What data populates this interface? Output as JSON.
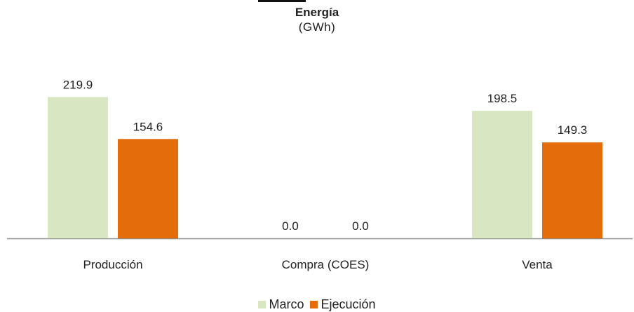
{
  "chart_data": {
    "type": "bar",
    "title": "Energía",
    "subtitle": "(GWh)",
    "categories": [
      "Producción",
      "Compra (COES)",
      "Venta"
    ],
    "series": [
      {
        "name": "Marco",
        "color": "#d9e6c2",
        "values": [
          219.9,
          0.0,
          198.5
        ],
        "labels": [
          "219.9",
          "0.0",
          "198.5"
        ]
      },
      {
        "name": "Ejecución",
        "color": "#e46c0a",
        "values": [
          154.6,
          0.0,
          149.3
        ],
        "labels": [
          "154.6",
          "0.0",
          "149.3"
        ]
      }
    ],
    "ylim": [
      0,
      250
    ],
    "grid": false,
    "legend_position": "bottom"
  }
}
